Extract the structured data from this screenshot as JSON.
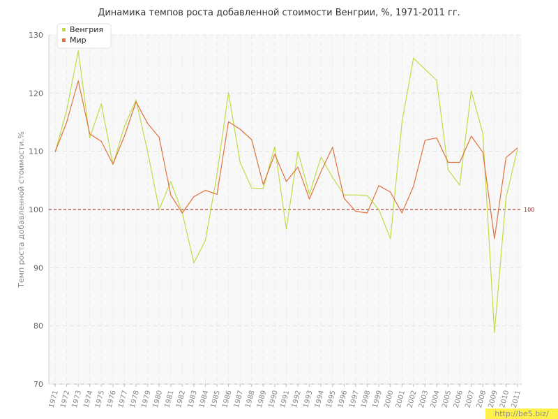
{
  "chart_data": {
    "type": "line",
    "title": "Динамика темпов роста добавленной стоимости Венгрии, %, 1971-2011 гг.",
    "xlabel": "",
    "ylabel": "Темп роста добавленной стоимости,%",
    "ylim": [
      70,
      130
    ],
    "yticks": [
      "70",
      "80",
      "90",
      "100",
      "110",
      "120",
      "130"
    ],
    "categories": [
      "1971",
      "1972",
      "1973",
      "1974",
      "1975",
      "1976",
      "1977",
      "1978",
      "1979",
      "1980",
      "1981",
      "1982",
      "1983",
      "1984",
      "1985",
      "1986",
      "1987",
      "1988",
      "1989",
      "1990",
      "1991",
      "1992",
      "1993",
      "1994",
      "1995",
      "1996",
      "1997",
      "1998",
      "1999",
      "2000",
      "2001",
      "2002",
      "2003",
      "2004",
      "2005",
      "2006",
      "2007",
      "2008",
      "2009",
      "2010",
      "2011"
    ],
    "series": [
      {
        "name": "Венгрия",
        "color": "#bfdc45",
        "values": [
          109.8,
          117.0,
          127.3,
          112.3,
          118.2,
          107.7,
          114.3,
          118.8,
          110.0,
          100.0,
          104.8,
          99.5,
          90.8,
          94.7,
          106.0,
          120.1,
          108.1,
          103.7,
          103.6,
          110.8,
          96.6,
          110.0,
          102.6,
          109.0,
          105.5,
          102.5,
          102.5,
          102.4,
          100.0,
          95.0,
          115.0,
          126.0,
          124.1,
          122.2,
          106.8,
          104.2,
          120.4,
          113.0,
          78.8,
          102.0,
          110.4
        ]
      },
      {
        "name": "Мир",
        "color": "#e0703d",
        "values": [
          109.9,
          115.0,
          122.1,
          113.0,
          111.7,
          107.8,
          112.6,
          118.5,
          114.8,
          112.4,
          102.5,
          99.4,
          102.2,
          103.3,
          102.6,
          115.1,
          113.8,
          112.0,
          104.3,
          109.5,
          104.8,
          107.3,
          101.8,
          106.5,
          110.7,
          101.9,
          99.7,
          99.4,
          104.1,
          103.0,
          99.4,
          104.0,
          111.9,
          112.3,
          108.1,
          108.1,
          112.6,
          109.8,
          95.0,
          108.9,
          110.6
        ]
      }
    ],
    "reference_line": {
      "value": 100,
      "label": "100",
      "color": "#8b1a1a"
    },
    "grid": true,
    "legend": "top-left"
  },
  "watermark": "http://be5.biz/"
}
